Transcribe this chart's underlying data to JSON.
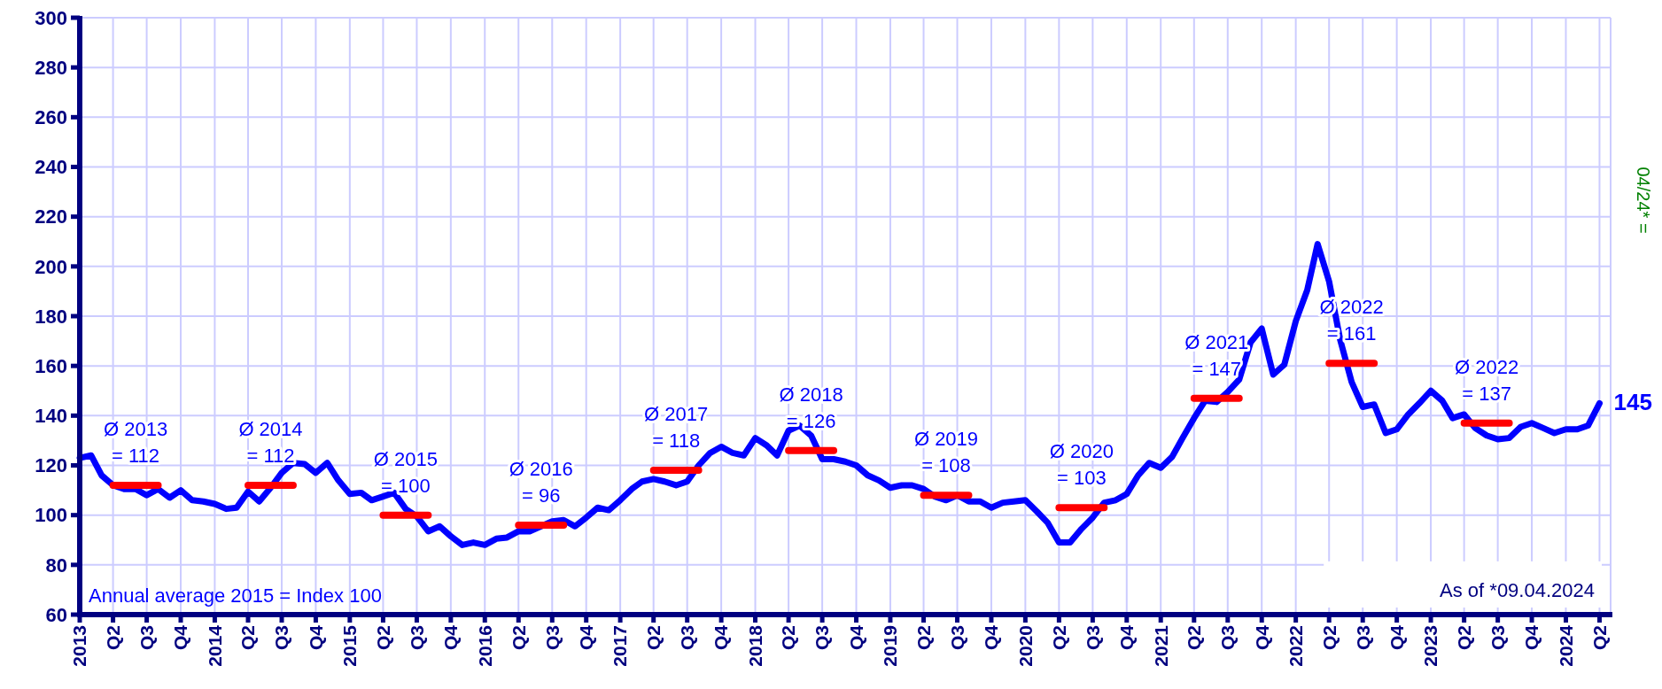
{
  "chart_data": {
    "type": "line",
    "x": [
      "2013-01",
      "2013-02",
      "2013-03",
      "2013-04",
      "2013-05",
      "2013-06",
      "2013-07",
      "2013-08",
      "2013-09",
      "2013-10",
      "2013-11",
      "2013-12",
      "2014-01",
      "2014-02",
      "2014-03",
      "2014-04",
      "2014-05",
      "2014-06",
      "2014-07",
      "2014-08",
      "2014-09",
      "2014-10",
      "2014-11",
      "2014-12",
      "2015-01",
      "2015-02",
      "2015-03",
      "2015-04",
      "2015-05",
      "2015-06",
      "2015-07",
      "2015-08",
      "2015-09",
      "2015-10",
      "2015-11",
      "2015-12",
      "2016-01",
      "2016-02",
      "2016-03",
      "2016-04",
      "2016-05",
      "2016-06",
      "2016-07",
      "2016-08",
      "2016-09",
      "2016-10",
      "2016-11",
      "2016-12",
      "2017-01",
      "2017-02",
      "2017-03",
      "2017-04",
      "2017-05",
      "2017-06",
      "2017-07",
      "2017-08",
      "2017-09",
      "2017-10",
      "2017-11",
      "2017-12",
      "2018-01",
      "2018-02",
      "2018-03",
      "2018-04",
      "2018-05",
      "2018-06",
      "2018-07",
      "2018-08",
      "2018-09",
      "2018-10",
      "2018-11",
      "2018-12",
      "2019-01",
      "2019-02",
      "2019-03",
      "2019-04",
      "2019-05",
      "2019-06",
      "2019-07",
      "2019-08",
      "2019-09",
      "2019-10",
      "2019-11",
      "2019-12",
      "2020-01",
      "2020-02",
      "2020-03",
      "2020-04",
      "2020-05",
      "2020-06",
      "2020-07",
      "2020-08",
      "2020-09",
      "2020-10",
      "2020-11",
      "2020-12",
      "2021-01",
      "2021-02",
      "2021-03",
      "2021-04",
      "2021-05",
      "2021-06",
      "2021-07",
      "2021-08",
      "2021-09",
      "2021-10",
      "2021-11",
      "2021-12",
      "2022-01",
      "2022-02",
      "2022-03",
      "2022-04",
      "2022-05",
      "2022-06",
      "2022-07",
      "2022-08",
      "2022-09",
      "2022-10",
      "2022-11",
      "2022-12",
      "2023-01",
      "2023-02",
      "2023-03",
      "2023-04",
      "2023-05",
      "2023-06",
      "2023-07",
      "2023-08",
      "2023-09",
      "2023-10",
      "2023-11",
      "2023-12",
      "2024-01",
      "2024-02",
      "2024-03",
      "2024-04"
    ],
    "series": [
      {
        "color": "#0000ff",
        "values": [
          123,
          124,
          116,
          112,
          110.5,
          110.5,
          108,
          110.5,
          107,
          110,
          106,
          105.5,
          104.5,
          102.5,
          103,
          109.5,
          105.5,
          111,
          117,
          121,
          120.5,
          117,
          121,
          114,
          108.5,
          109,
          106,
          107.5,
          109,
          102.5,
          99.5,
          93.5,
          95.5,
          91.5,
          88,
          89,
          88,
          90.5,
          91,
          93.5,
          93.5,
          95.5,
          97.5,
          98,
          95.5,
          99,
          103,
          102,
          106,
          110.5,
          113.5,
          114.5,
          113.5,
          112,
          113.5,
          120,
          125,
          127.5,
          125,
          124,
          131,
          128,
          124,
          134,
          136,
          132,
          122.5,
          122.5,
          121.5,
          120,
          116,
          114,
          111,
          112,
          112,
          110.5,
          107.5,
          106,
          108,
          105.5,
          105.5,
          103,
          105,
          105.5,
          106,
          101.5,
          97,
          89,
          89,
          94.5,
          99,
          105,
          106,
          108.5,
          116,
          121,
          119,
          123.5,
          131,
          139,
          146,
          145.5,
          149.5,
          154.5,
          169.5,
          175,
          156.5,
          160.5,
          178,
          190.5,
          209,
          194,
          170.5,
          153.5,
          143.5,
          144.5,
          133,
          134.5,
          140.5,
          145,
          150,
          146,
          139,
          140.5,
          135,
          132,
          130.5,
          131,
          135.5,
          137,
          135,
          133,
          134.5,
          134.5,
          136,
          145
        ]
      },
      {
        "color": "#ff0000",
        "x": [
          "2013-04",
          "2013-08",
          "2013-09",
          "2014-04",
          "2014-08",
          "2014-09",
          "2015-04",
          "2015-08",
          "2015-09",
          "2016-04",
          "2016-08",
          "2016-09",
          "2017-04",
          "2017-08",
          "2017-09",
          "2018-04",
          "2018-08",
          "2018-09",
          "2019-04",
          "2019-08",
          "2019-09",
          "2020-04",
          "2020-08",
          "2020-09",
          "2021-04",
          "2021-08",
          "2021-09",
          "2022-04",
          "2022-08",
          "2022-09",
          "2023-04",
          "2023-08"
        ],
        "values": [
          112,
          112,
          null,
          112,
          112,
          null,
          100,
          100,
          null,
          96,
          96,
          null,
          118,
          118,
          null,
          126,
          126,
          null,
          108,
          108,
          null,
          103,
          103,
          null,
          147,
          147,
          null,
          161,
          161,
          null,
          137,
          137
        ]
      }
    ],
    "ylim": [
      60,
      300
    ],
    "yticks": [
      60,
      80,
      100,
      120,
      140,
      160,
      180,
      200,
      220,
      240,
      260,
      280,
      300
    ],
    "xlim": [
      "2013-01",
      "2024-05"
    ],
    "xticks": [
      {
        "value": "2013-01",
        "label": "2013"
      },
      {
        "value": "2013-04",
        "label": "Q2"
      },
      {
        "value": "2013-07",
        "label": "Q3"
      },
      {
        "value": "2013-10",
        "label": "Q4"
      },
      {
        "value": "2014-01",
        "label": "2014"
      },
      {
        "value": "2014-04",
        "label": "Q2"
      },
      {
        "value": "2014-07",
        "label": "Q3"
      },
      {
        "value": "2014-10",
        "label": "Q4"
      },
      {
        "value": "2015-01",
        "label": "2015"
      },
      {
        "value": "2015-04",
        "label": "Q2"
      },
      {
        "value": "2015-07",
        "label": "Q3"
      },
      {
        "value": "2015-10",
        "label": "Q4"
      },
      {
        "value": "2016-01",
        "label": "2016"
      },
      {
        "value": "2016-04",
        "label": "Q2"
      },
      {
        "value": "2016-07",
        "label": "Q3"
      },
      {
        "value": "2016-10",
        "label": "Q4"
      },
      {
        "value": "2017-01",
        "label": "2017"
      },
      {
        "value": "2017-04",
        "label": "Q2"
      },
      {
        "value": "2017-07",
        "label": "Q3"
      },
      {
        "value": "2017-10",
        "label": "Q4"
      },
      {
        "value": "2018-01",
        "label": "2018"
      },
      {
        "value": "2018-04",
        "label": "Q2"
      },
      {
        "value": "2018-07",
        "label": "Q3"
      },
      {
        "value": "2018-10",
        "label": "Q4"
      },
      {
        "value": "2019-01",
        "label": "2019"
      },
      {
        "value": "2019-04",
        "label": "Q2"
      },
      {
        "value": "2019-07",
        "label": "Q3"
      },
      {
        "value": "2019-10",
        "label": "Q4"
      },
      {
        "value": "2020-01",
        "label": "2020"
      },
      {
        "value": "2020-04",
        "label": "Q2"
      },
      {
        "value": "2020-07",
        "label": "Q3"
      },
      {
        "value": "2020-10",
        "label": "Q4"
      },
      {
        "value": "2021-01",
        "label": "2021"
      },
      {
        "value": "2021-04",
        "label": "Q2"
      },
      {
        "value": "2021-07",
        "label": "Q3"
      },
      {
        "value": "2021-10",
        "label": "Q4"
      },
      {
        "value": "2022-01",
        "label": "2022"
      },
      {
        "value": "2022-04",
        "label": "Q2"
      },
      {
        "value": "2022-07",
        "label": "Q3"
      },
      {
        "value": "2022-10",
        "label": "Q4"
      },
      {
        "value": "2023-01",
        "label": "2023"
      },
      {
        "value": "2023-04",
        "label": "Q2"
      },
      {
        "value": "2023-07",
        "label": "Q3"
      },
      {
        "value": "2023-10",
        "label": "Q4"
      },
      {
        "value": "2024-01",
        "label": "2024"
      },
      {
        "value": "2024-04",
        "label": "Q2"
      }
    ],
    "grid": true,
    "annotations": [
      "Annual average 2015 = Index 100",
      "As of *09.04.2024",
      "04/24* =",
      {
        "text": "Ø 2013\n= 112",
        "x": "2013-06",
        "y": 112
      },
      {
        "text": "Ø 2014\n= 112",
        "x": "2014-06",
        "y": 112
      },
      {
        "text": "Ø 2015\n= 100",
        "x": "2015-06",
        "y": 100
      },
      {
        "text": "Ø 2016\n= 96",
        "x": "2016-06",
        "y": 96
      },
      {
        "text": "Ø 2017\n= 118",
        "x": "2017-06",
        "y": 118
      },
      {
        "text": "Ø 2018\n= 126",
        "x": "2018-06",
        "y": 126
      },
      {
        "text": "Ø 2019\n= 108",
        "x": "2019-06",
        "y": 108
      },
      {
        "text": "Ø 2020\n= 103",
        "x": "2020-06",
        "y": 103
      },
      {
        "text": "Ø 2021\n= 147",
        "x": "2021-06",
        "y": 147
      },
      {
        "text": "Ø 2022\n= 161",
        "x": "2022-06",
        "y": 161
      },
      {
        "text": "Ø 2022\n= 137",
        "x": "2023-06",
        "y": 137
      },
      {
        "text": "145",
        "x": "2024-04",
        "y": 145
      }
    ]
  }
}
